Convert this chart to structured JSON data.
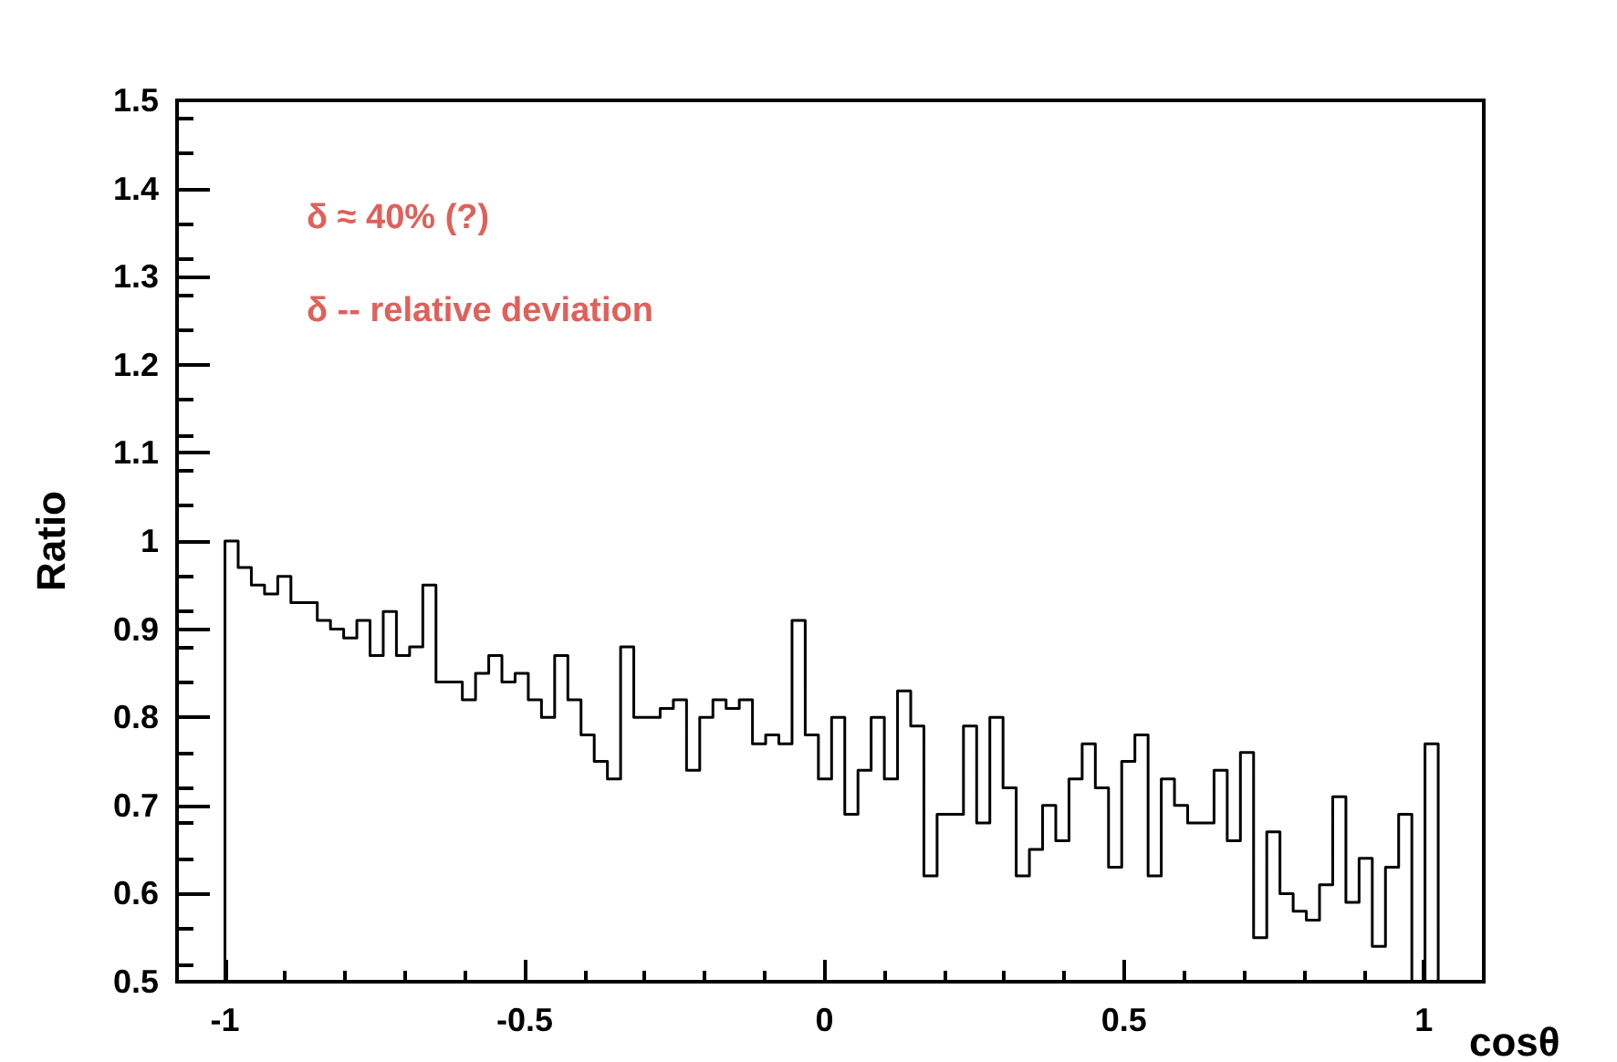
{
  "chart_data": {
    "type": "histogram",
    "xlabel": "cosθ",
    "ylabel": "Ratio",
    "color": "#000000",
    "annotations": [
      "δ ≈ 40% (?)",
      "δ -- relative deviation"
    ],
    "bins": [
      -1,
      -0.978,
      -0.956,
      -0.934,
      -0.912,
      -0.89,
      -0.868,
      -0.846,
      -0.824,
      -0.802,
      -0.78,
      -0.758,
      -0.736,
      -0.714,
      -0.692,
      -0.67,
      -0.648,
      -0.626,
      -0.604,
      -0.582,
      -0.56,
      -0.538,
      -0.516,
      -0.494,
      -0.472,
      -0.45,
      -0.428,
      -0.406,
      -0.384,
      -0.362,
      -0.34,
      -0.318,
      -0.296,
      -0.274,
      -0.252,
      -0.23,
      -0.208,
      -0.186,
      -0.164,
      -0.142,
      -0.12,
      -0.098,
      -0.076,
      -0.054,
      -0.032,
      -0.01,
      0.012,
      0.034,
      0.056,
      0.078,
      0.1,
      0.122,
      0.144,
      0.166,
      0.188,
      0.21,
      0.232,
      0.254,
      0.276,
      0.298,
      0.32,
      0.342,
      0.364,
      0.386,
      0.408,
      0.43,
      0.452,
      0.474,
      0.496,
      0.518,
      0.54,
      0.562,
      0.584,
      0.606,
      0.628,
      0.65,
      0.672,
      0.694,
      0.716,
      0.738,
      0.76,
      0.782,
      0.804,
      0.826,
      0.848,
      0.87,
      0.892,
      0.914,
      0.936,
      0.958,
      0.98,
      1.002,
      1.024
    ],
    "values": [
      1.0,
      0.97,
      0.95,
      0.94,
      0.96,
      0.93,
      0.93,
      0.91,
      0.9,
      0.89,
      0.91,
      0.87,
      0.92,
      0.87,
      0.88,
      0.95,
      0.84,
      0.84,
      0.82,
      0.85,
      0.87,
      0.84,
      0.85,
      0.82,
      0.8,
      0.87,
      0.82,
      0.78,
      0.75,
      0.73,
      0.88,
      0.8,
      0.8,
      0.81,
      0.82,
      0.74,
      0.8,
      0.82,
      0.81,
      0.82,
      0.77,
      0.78,
      0.77,
      0.91,
      0.78,
      0.73,
      0.8,
      0.69,
      0.74,
      0.8,
      0.73,
      0.83,
      0.79,
      0.62,
      0.69,
      0.69,
      0.79,
      0.68,
      0.8,
      0.72,
      0.62,
      0.65,
      0.7,
      0.66,
      0.73,
      0.77,
      0.72,
      0.63,
      0.75,
      0.78,
      0.62,
      0.73,
      0.7,
      0.68,
      0.68,
      0.74,
      0.66,
      0.76,
      0.55,
      0.67,
      0.6,
      0.58,
      0.57,
      0.61,
      0.71,
      0.59,
      0.64,
      0.54,
      0.63,
      0.69,
      null,
      0.77
    ],
    "xlim": [
      -1.08,
      1.1
    ],
    "xticks": [
      -1,
      -0.5,
      0,
      0.5,
      1
    ],
    "ylim": [
      0.5,
      1.5
    ],
    "yticks": [
      0.5,
      0.6,
      0.7,
      0.8,
      0.9,
      1,
      1.1,
      1.2,
      1.3,
      1.4,
      1.5
    ]
  }
}
